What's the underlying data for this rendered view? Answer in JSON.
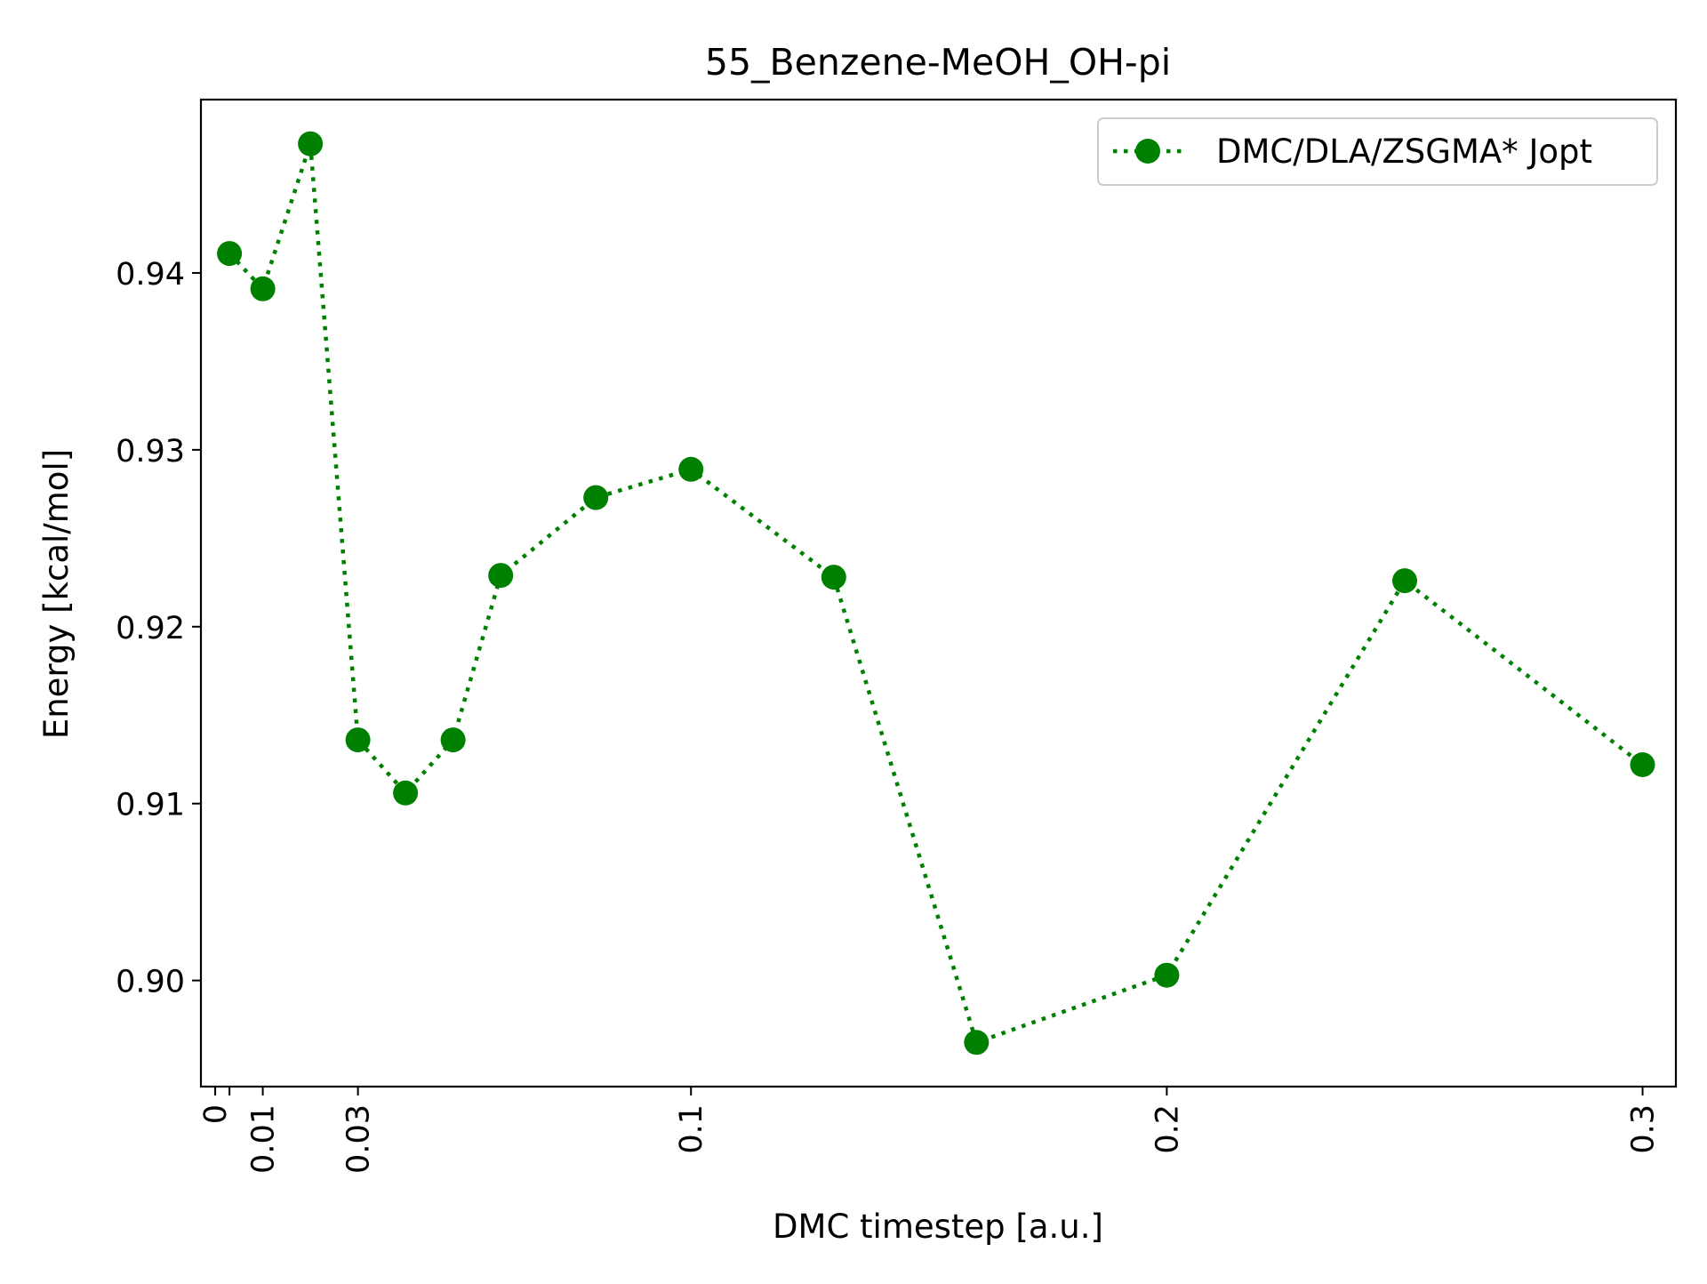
{
  "chart_data": {
    "type": "line",
    "title": "55_Benzene-MeOH_OH-pi",
    "xlabel": "DMC timestep [a.u.]",
    "ylabel": "Energy [kcal/mol]",
    "xlim": [
      -0.003,
      0.307
    ],
    "ylim": [
      0.894,
      0.9498
    ],
    "xticks": [
      0,
      0.003,
      0.01,
      0.03,
      0.1,
      0.2,
      0.3
    ],
    "xtick_labels": [
      "0",
      "",
      "0.01",
      "0.03",
      "0.1",
      "0.2",
      "0.3"
    ],
    "yticks": [
      0.9,
      0.91,
      0.92,
      0.93,
      0.94
    ],
    "ytick_labels": [
      "0.90",
      "0.91",
      "0.92",
      "0.93",
      "0.94"
    ],
    "legend_position": "top-right",
    "grid": false,
    "series": [
      {
        "name": "DMC/DLA/ZSGMA* Jopt",
        "color": "#008000",
        "line_style": "dotted",
        "marker": "circle",
        "x": [
          0.003,
          0.01,
          0.02,
          0.03,
          0.04,
          0.05,
          0.06,
          0.08,
          0.1,
          0.13,
          0.16,
          0.2,
          0.25,
          0.3
        ],
        "y": [
          0.9411,
          0.9391,
          0.9473,
          0.9136,
          0.9106,
          0.9136,
          0.9229,
          0.9273,
          0.9289,
          0.9228,
          0.8965,
          0.9003,
          0.9226,
          0.9122
        ]
      }
    ]
  }
}
